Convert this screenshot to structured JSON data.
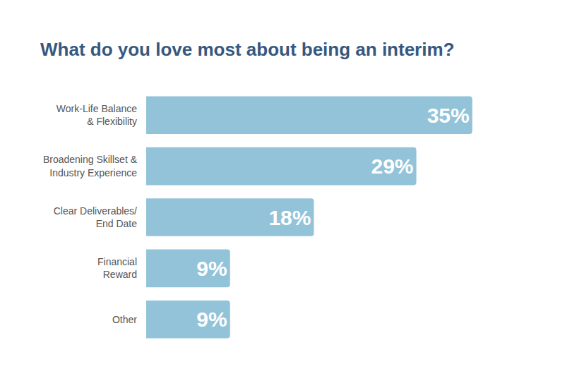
{
  "chart_data": {
    "type": "bar",
    "orientation": "horizontal",
    "title": "What do you love most about being an interim?",
    "categories": [
      "Work-Life Balance\n& Flexibility",
      "Broadening Skillset &\nIndustry Experience",
      "Clear Deliverables/\nEnd Date",
      "Financial\nReward",
      "Other"
    ],
    "values": [
      35,
      29,
      18,
      9,
      9
    ],
    "value_labels": [
      "35%",
      "29%",
      "18%",
      "9%",
      "9%"
    ],
    "color": "#92c3d8",
    "xlim": [
      0,
      42
    ],
    "data_labels": true,
    "tick_labels": "y",
    "grid": false
  }
}
